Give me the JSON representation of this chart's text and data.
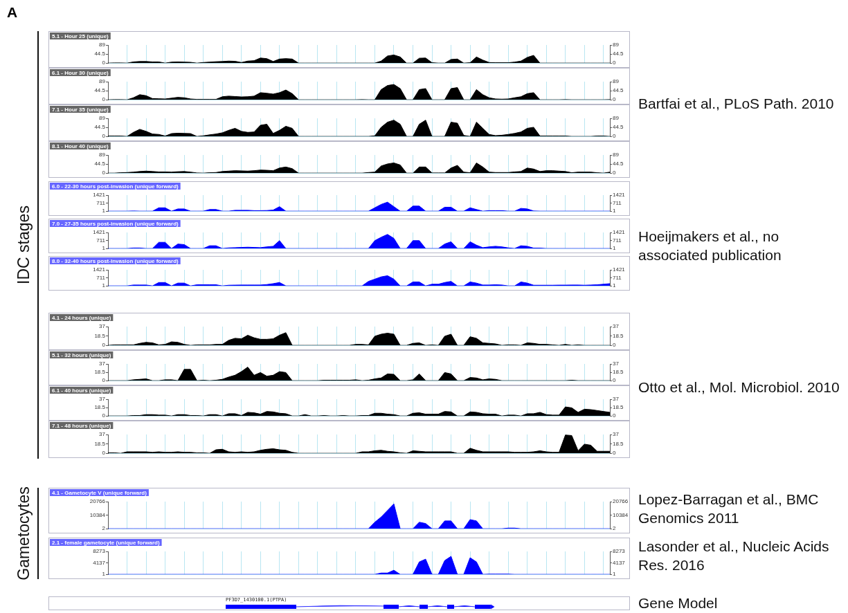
{
  "chart_data": [
    {
      "type": "area",
      "title": "5.1 - Hour 25 (unique)",
      "annotations": [
        "A",
        "IDC stages",
        "Bartfai et al., PLoS Path. 2010"
      ],
      "color": "#000000",
      "grid": "x",
      "ylim": [
        0,
        89
      ],
      "yticks": [
        0,
        44.5,
        89
      ],
      "y2lim": [
        0,
        89
      ],
      "y2ticks": [
        0,
        44.5,
        89
      ],
      "categories": [
        null,
        null,
        null,
        null,
        null,
        null,
        null,
        null,
        null,
        null,
        null,
        null,
        null,
        null,
        null,
        null,
        null,
        null,
        null,
        null,
        null,
        null,
        null,
        null,
        null,
        null,
        null,
        null,
        null,
        null,
        null,
        null,
        null,
        null,
        null,
        null,
        null,
        null,
        null,
        null,
        null,
        null,
        null,
        null,
        null,
        null,
        null,
        null,
        null,
        null,
        null,
        null,
        null,
        null,
        null,
        null,
        null,
        null,
        null,
        null,
        null,
        null,
        null,
        null,
        null,
        null,
        null,
        null,
        null,
        null,
        null,
        null,
        null,
        null,
        null,
        null,
        null,
        null,
        null,
        null
      ],
      "values": [
        0,
        1,
        1,
        0,
        6,
        8,
        8,
        6,
        6,
        0,
        5,
        6,
        5,
        4,
        0,
        3,
        5,
        7,
        8,
        10,
        9,
        3,
        10,
        12,
        25,
        22,
        8,
        20,
        22,
        20,
        0,
        0,
        0,
        0,
        0,
        0,
        0,
        0,
        0,
        0,
        0,
        0,
        0,
        10,
        35,
        40,
        30,
        0,
        0,
        24,
        25,
        2,
        0,
        0,
        18,
        20,
        0,
        2,
        30,
        15,
        3,
        2,
        2,
        2,
        5,
        10,
        28,
        38,
        0,
        0,
        0,
        0,
        0,
        0,
        0,
        0,
        0,
        0,
        0,
        0
      ]
    },
    {
      "type": "area",
      "title": "6.1 - Hour 30 (unique)",
      "color": "#000000",
      "grid": "x",
      "ylim": [
        0,
        89
      ],
      "yticks": [
        0,
        44.5,
        89
      ],
      "y2lim": [
        0,
        89
      ],
      "y2ticks": [
        0,
        44.5,
        89
      ],
      "categories": [
        null,
        null,
        null,
        null,
        null,
        null,
        null,
        null,
        null,
        null,
        null,
        null,
        null,
        null,
        null,
        null,
        null,
        null,
        null,
        null,
        null,
        null,
        null,
        null,
        null,
        null,
        null,
        null,
        null,
        null,
        null,
        null,
        null,
        null,
        null,
        null,
        null,
        null,
        null,
        null,
        null,
        null,
        null,
        null,
        null,
        null,
        null,
        null,
        null,
        null,
        null,
        null,
        null,
        null,
        null,
        null,
        null,
        null,
        null,
        null,
        null,
        null,
        null,
        null,
        null,
        null,
        null,
        null,
        null,
        null,
        null,
        null,
        null,
        null,
        null,
        null,
        null,
        null,
        null,
        null
      ],
      "values": [
        0,
        1,
        1,
        0,
        10,
        25,
        20,
        6,
        5,
        4,
        8,
        12,
        10,
        4,
        2,
        2,
        2,
        2,
        15,
        18,
        16,
        14,
        15,
        18,
        35,
        32,
        28,
        35,
        48,
        30,
        0,
        0,
        0,
        0,
        0,
        0,
        0,
        0,
        0,
        0,
        1,
        0,
        0,
        50,
        70,
        75,
        55,
        0,
        0,
        50,
        55,
        0,
        0,
        0,
        55,
        60,
        0,
        0,
        50,
        25,
        10,
        4,
        3,
        4,
        10,
        15,
        30,
        35,
        0,
        0,
        0,
        0,
        1,
        0,
        0,
        0,
        0,
        0,
        0,
        1
      ]
    },
    {
      "type": "area",
      "title": "7.1 - Hour 35 (unique)",
      "color": "#000000",
      "grid": "x",
      "ylim": [
        0,
        89
      ],
      "yticks": [
        0,
        44.5,
        89
      ],
      "y2lim": [
        0,
        89
      ],
      "y2ticks": [
        0,
        44.5,
        89
      ],
      "categories": [
        null,
        null,
        null,
        null,
        null,
        null,
        null,
        null,
        null,
        null,
        null,
        null,
        null,
        null,
        null,
        null,
        null,
        null,
        null,
        null,
        null,
        null,
        null,
        null,
        null,
        null,
        null,
        null,
        null,
        null,
        null,
        null,
        null,
        null,
        null,
        null,
        null,
        null,
        null,
        null,
        null,
        null,
        null,
        null,
        null,
        null,
        null,
        null,
        null,
        null,
        null,
        null,
        null,
        null,
        null,
        null,
        null,
        null,
        null,
        null,
        null,
        null,
        null,
        null,
        null,
        null,
        null,
        null,
        null,
        null,
        null,
        null,
        null,
        null,
        null,
        null,
        null,
        null,
        null,
        null
      ],
      "values": [
        2,
        2,
        2,
        0,
        20,
        35,
        25,
        12,
        10,
        2,
        14,
        16,
        15,
        14,
        0,
        3,
        8,
        12,
        18,
        30,
        40,
        25,
        20,
        22,
        55,
        60,
        15,
        30,
        50,
        40,
        0,
        0,
        0,
        0,
        0,
        0,
        0,
        0,
        0,
        0,
        0,
        0,
        3,
        45,
        70,
        80,
        60,
        0,
        0,
        60,
        80,
        0,
        0,
        0,
        70,
        65,
        5,
        0,
        70,
        40,
        10,
        4,
        6,
        10,
        15,
        22,
        40,
        45,
        2,
        2,
        2,
        2,
        2,
        0,
        0,
        0,
        0,
        2,
        2,
        0
      ]
    },
    {
      "type": "area",
      "title": "8.1 - Hour 40 (unique)",
      "color": "#000000",
      "grid": "x",
      "ylim": [
        0,
        89
      ],
      "yticks": [
        0,
        44.5,
        89
      ],
      "y2lim": [
        0,
        89
      ],
      "y2ticks": [
        0,
        44.5,
        89
      ],
      "categories": [
        null,
        null,
        null,
        null,
        null,
        null,
        null,
        null,
        null,
        null,
        null,
        null,
        null,
        null,
        null,
        null,
        null,
        null,
        null,
        null,
        null,
        null,
        null,
        null,
        null,
        null,
        null,
        null,
        null,
        null,
        null,
        null,
        null,
        null,
        null,
        null,
        null,
        null,
        null,
        null,
        null,
        null,
        null,
        null,
        null,
        null,
        null,
        null,
        null,
        null,
        null,
        null,
        null,
        null,
        null,
        null,
        null,
        null,
        null,
        null,
        null,
        null,
        null,
        null,
        null,
        null,
        null,
        null,
        null,
        null,
        null,
        null,
        null,
        null,
        null,
        null,
        null,
        null,
        null,
        null
      ],
      "values": [
        0,
        0,
        2,
        3,
        5,
        8,
        10,
        8,
        6,
        6,
        5,
        7,
        8,
        5,
        1,
        0,
        2,
        3,
        8,
        10,
        12,
        11,
        10,
        12,
        15,
        14,
        12,
        25,
        30,
        22,
        0,
        0,
        0,
        0,
        0,
        0,
        0,
        0,
        0,
        0,
        0,
        3,
        5,
        35,
        45,
        50,
        40,
        0,
        0,
        30,
        30,
        1,
        1,
        1,
        25,
        38,
        5,
        2,
        50,
        30,
        5,
        3,
        3,
        3,
        6,
        8,
        25,
        20,
        8,
        12,
        12,
        10,
        8,
        2,
        5,
        5,
        5,
        2,
        0,
        5
      ]
    },
    {
      "type": "area",
      "title": "6.0 - 22-30 hours post-invasion (unique forward)",
      "annotations": [
        "Hoeijmakers et al., no associated publication"
      ],
      "color": "#0000ff",
      "grid": "x",
      "ylim": [
        1,
        1421
      ],
      "yticks": [
        1,
        711,
        1421
      ],
      "y2lim": [
        1,
        1421
      ],
      "y2ticks": [
        1,
        711,
        1421
      ],
      "categories": [
        null,
        null,
        null,
        null,
        null,
        null,
        null,
        null,
        null,
        null,
        null,
        null,
        null,
        null,
        null,
        null,
        null,
        null,
        null,
        null,
        null,
        null,
        null,
        null,
        null,
        null,
        null,
        null,
        null,
        null,
        null,
        null,
        null,
        null,
        null,
        null,
        null,
        null,
        null,
        null,
        null,
        null,
        null,
        null,
        null,
        null,
        null,
        null,
        null,
        null,
        null,
        null,
        null,
        null,
        null,
        null,
        null,
        null,
        null,
        null,
        null,
        null,
        null,
        null,
        null,
        null,
        null,
        null,
        null,
        null,
        null,
        null,
        null,
        null,
        null,
        null,
        null,
        null,
        null,
        null
      ],
      "values": [
        1,
        1,
        1,
        1,
        20,
        1,
        1,
        1,
        300,
        300,
        1,
        200,
        200,
        1,
        1,
        1,
        150,
        150,
        1,
        1,
        80,
        80,
        80,
        50,
        50,
        60,
        100,
        400,
        1,
        1,
        1,
        1,
        1,
        1,
        1,
        1,
        1,
        1,
        1,
        1,
        1,
        1,
        300,
        600,
        800,
        400,
        1,
        1,
        450,
        450,
        1,
        1,
        1,
        350,
        350,
        1,
        1,
        300,
        150,
        1,
        50,
        50,
        50,
        1,
        1,
        250,
        200,
        20,
        1,
        1,
        1,
        1,
        1,
        1,
        1,
        1,
        1,
        1,
        1,
        1
      ]
    },
    {
      "type": "area",
      "title": "7.0 - 27-35 hours post-invasion (unique forward)",
      "color": "#0000ff",
      "grid": "x",
      "ylim": [
        1,
        1421
      ],
      "yticks": [
        1,
        711,
        1421
      ],
      "y2lim": [
        1,
        1421
      ],
      "y2ticks": [
        1,
        711,
        1421
      ],
      "categories": [
        null,
        null,
        null,
        null,
        null,
        null,
        null,
        null,
        null,
        null,
        null,
        null,
        null,
        null,
        null,
        null,
        null,
        null,
        null,
        null,
        null,
        null,
        null,
        null,
        null,
        null,
        null,
        null,
        null,
        null,
        null,
        null,
        null,
        null,
        null,
        null,
        null,
        null,
        null,
        null,
        null,
        null,
        null,
        null,
        null,
        null,
        null,
        null,
        null,
        null,
        null,
        null,
        null,
        null,
        null,
        null,
        null,
        null,
        null,
        null,
        null,
        null,
        null,
        null,
        null,
        null,
        null,
        null,
        null,
        null,
        null,
        null,
        null,
        null,
        null,
        null,
        null,
        null,
        null,
        null
      ],
      "values": [
        1,
        1,
        1,
        1,
        50,
        50,
        1,
        1,
        550,
        550,
        1,
        400,
        350,
        1,
        1,
        1,
        250,
        250,
        1,
        60,
        80,
        100,
        120,
        100,
        80,
        150,
        200,
        700,
        1,
        1,
        1,
        1,
        1,
        1,
        1,
        1,
        1,
        1,
        1,
        1,
        1,
        1,
        700,
        1000,
        1250,
        900,
        1,
        1,
        700,
        700,
        1,
        1,
        1,
        400,
        600,
        1,
        1,
        600,
        300,
        80,
        150,
        200,
        150,
        60,
        1,
        250,
        200,
        40,
        40,
        1,
        1,
        1,
        1,
        1,
        1,
        1,
        1,
        1,
        1,
        1
      ]
    },
    {
      "type": "area",
      "title": "8.0 - 32-40 hours post-invasion (unique forward)",
      "color": "#0000ff",
      "grid": "x",
      "ylim": [
        1,
        1421
      ],
      "yticks": [
        1,
        711,
        1421
      ],
      "y2lim": [
        1,
        1421
      ],
      "y2ticks": [
        1,
        711,
        1421
      ],
      "categories": [
        null,
        null,
        null,
        null,
        null,
        null,
        null,
        null,
        null,
        null,
        null,
        null,
        null,
        null,
        null,
        null,
        null,
        null,
        null,
        null,
        null,
        null,
        null,
        null,
        null,
        null,
        null,
        null,
        null,
        null,
        null,
        null,
        null,
        null,
        null,
        null,
        null,
        null,
        null,
        null,
        null,
        null,
        null,
        null,
        null,
        null,
        null,
        null,
        null,
        null,
        null,
        null,
        null,
        null,
        null,
        null,
        null,
        null,
        null,
        null,
        null,
        null,
        null,
        null,
        null,
        null,
        null,
        null,
        null,
        null,
        null,
        null,
        null,
        null,
        null,
        null,
        null,
        null,
        null,
        null
      ],
      "values": [
        1,
        1,
        1,
        1,
        80,
        80,
        80,
        1,
        300,
        300,
        1,
        250,
        250,
        1,
        100,
        100,
        100,
        100,
        1,
        60,
        70,
        80,
        80,
        80,
        80,
        120,
        200,
        300,
        1,
        1,
        1,
        1,
        1,
        1,
        1,
        1,
        1,
        1,
        1,
        1,
        1,
        400,
        600,
        800,
        900,
        600,
        1,
        1,
        350,
        350,
        1,
        150,
        150,
        300,
        400,
        1,
        1,
        350,
        250,
        80,
        80,
        100,
        80,
        1,
        1,
        350,
        250,
        60,
        60,
        60,
        60,
        70,
        70,
        80,
        80,
        60,
        80,
        100,
        150,
        200
      ]
    },
    {
      "type": "area",
      "title": "4.1 - 24 hours (unique)",
      "annotations": [
        "Otto et al., Mol. Microbiol. 2010"
      ],
      "color": "#000000",
      "grid": "x",
      "ylim": [
        0,
        37
      ],
      "yticks": [
        0,
        18.5,
        37
      ],
      "y2lim": [
        0,
        37
      ],
      "y2ticks": [
        0,
        18.5,
        37
      ],
      "categories": [
        null,
        null,
        null,
        null,
        null,
        null,
        null,
        null,
        null,
        null,
        null,
        null,
        null,
        null,
        null,
        null,
        null,
        null,
        null,
        null,
        null,
        null,
        null,
        null,
        null,
        null,
        null,
        null,
        null,
        null,
        null,
        null,
        null,
        null,
        null,
        null,
        null,
        null,
        null,
        null,
        null,
        null,
        null,
        null,
        null,
        null,
        null,
        null,
        null,
        null,
        null,
        null,
        null,
        null,
        null,
        null,
        null,
        null,
        null,
        null,
        null,
        null,
        null,
        null,
        null,
        null,
        null,
        null,
        null,
        null,
        null,
        null,
        null,
        null,
        null,
        null,
        null,
        null,
        null,
        null
      ],
      "values": [
        0,
        1,
        1,
        1,
        1,
        4,
        6,
        5,
        1,
        2,
        7,
        6,
        2,
        0,
        1,
        1,
        1,
        2,
        2,
        10,
        14,
        13,
        20,
        15,
        12,
        12,
        13,
        20,
        25,
        0,
        0,
        0,
        0,
        0,
        0,
        0,
        0,
        0,
        0,
        2,
        2,
        1,
        18,
        22,
        24,
        22,
        0,
        0,
        4,
        5,
        0,
        1,
        0,
        18,
        22,
        0,
        0,
        17,
        14,
        5,
        4,
        3,
        0,
        1,
        1,
        0,
        5,
        4,
        2,
        2,
        1,
        0,
        2,
        0,
        1,
        0,
        0,
        0,
        0,
        0
      ]
    },
    {
      "type": "area",
      "title": "5.1 - 32 hours (unique)",
      "color": "#000000",
      "grid": "x",
      "ylim": [
        0,
        37
      ],
      "yticks": [
        0,
        18.5,
        37
      ],
      "y2lim": [
        0,
        37
      ],
      "y2ticks": [
        0,
        18.5,
        37
      ],
      "categories": [
        null,
        null,
        null,
        null,
        null,
        null,
        null,
        null,
        null,
        null,
        null,
        null,
        null,
        null,
        null,
        null,
        null,
        null,
        null,
        null,
        null,
        null,
        null,
        null,
        null,
        null,
        null,
        null,
        null,
        null,
        null,
        null,
        null,
        null,
        null,
        null,
        null,
        null,
        null,
        null,
        null,
        null,
        null,
        null,
        null,
        null,
        null,
        null,
        null,
        null,
        null,
        null,
        null,
        null,
        null,
        null,
        null,
        null,
        null,
        null,
        null,
        null,
        null,
        null,
        null,
        null,
        null,
        null,
        null,
        null,
        null,
        null,
        null,
        null,
        null,
        null,
        null,
        null,
        null,
        null
      ],
      "values": [
        0,
        0,
        0,
        0,
        2,
        3,
        4,
        0,
        0,
        2,
        2,
        0,
        25,
        25,
        0,
        1,
        0,
        1,
        3,
        8,
        12,
        20,
        30,
        12,
        18,
        10,
        12,
        20,
        18,
        0,
        0,
        0,
        0,
        0,
        1,
        1,
        1,
        1,
        1,
        2,
        0,
        1,
        4,
        6,
        15,
        14,
        0,
        0,
        2,
        15,
        0,
        0,
        0,
        18,
        15,
        0,
        0,
        7,
        6,
        2,
        4,
        3,
        0,
        0,
        0,
        0,
        0,
        0,
        0,
        0,
        0,
        0,
        0,
        1,
        0,
        0,
        0,
        0,
        0,
        0
      ]
    },
    {
      "type": "area",
      "title": "6.1 - 40 hours (unique)",
      "color": "#000000",
      "grid": "x",
      "ylim": [
        0,
        37
      ],
      "yticks": [
        0,
        18.5,
        37
      ],
      "y2lim": [
        0,
        37
      ],
      "y2ticks": [
        0,
        18.5,
        37
      ],
      "categories": [
        null,
        null,
        null,
        null,
        null,
        null,
        null,
        null,
        null,
        null,
        null,
        null,
        null,
        null,
        null,
        null,
        null,
        null,
        null,
        null,
        null,
        null,
        null,
        null,
        null,
        null,
        null,
        null,
        null,
        null,
        null,
        null,
        null,
        null,
        null,
        null,
        null,
        null,
        null,
        null,
        null,
        null,
        null,
        null,
        null,
        null,
        null,
        null,
        null,
        null,
        null,
        null,
        null,
        null,
        null,
        null,
        null,
        null,
        null,
        null,
        null,
        null,
        null,
        null,
        null,
        null,
        null,
        null,
        null,
        null,
        null,
        null,
        null,
        null,
        null,
        null,
        null,
        null,
        null,
        null
      ],
      "values": [
        0,
        0,
        0,
        0,
        1,
        1,
        3,
        3,
        2,
        2,
        0,
        3,
        3,
        1,
        1,
        0,
        3,
        3,
        0,
        5,
        5,
        1,
        8,
        7,
        4,
        10,
        9,
        6,
        5,
        0,
        0,
        3,
        0,
        0,
        1,
        0,
        0,
        1,
        0,
        0,
        1,
        1,
        6,
        6,
        4,
        3,
        0,
        0,
        6,
        7,
        4,
        4,
        4,
        10,
        9,
        0,
        0,
        9,
        8,
        5,
        4,
        4,
        0,
        2,
        2,
        0,
        5,
        5,
        8,
        3,
        2,
        2,
        20,
        18,
        8,
        15,
        14,
        12,
        10,
        8
      ]
    },
    {
      "type": "area",
      "title": "7.1 - 48 hours (unique)",
      "color": "#000000",
      "grid": "x",
      "ylim": [
        0,
        37
      ],
      "yticks": [
        0,
        18.5,
        37
      ],
      "y2lim": [
        0,
        37
      ],
      "y2ticks": [
        0,
        18.5,
        37
      ],
      "categories": [
        null,
        null,
        null,
        null,
        null,
        null,
        null,
        null,
        null,
        null,
        null,
        null,
        null,
        null,
        null,
        null,
        null,
        null,
        null,
        null,
        null,
        null,
        null,
        null,
        null,
        null,
        null,
        null,
        null,
        null,
        null,
        null,
        null,
        null,
        null,
        null,
        null,
        null,
        null,
        null,
        null,
        null,
        null,
        null,
        null,
        null,
        null,
        null,
        null,
        null,
        null,
        null,
        null,
        null,
        null,
        null,
        null,
        null,
        null,
        null,
        null,
        null,
        null,
        null,
        null,
        null,
        null,
        null,
        null,
        null,
        null,
        null,
        null,
        null,
        null,
        null,
        null,
        null,
        null,
        null
      ],
      "values": [
        1,
        1,
        0,
        3,
        3,
        3,
        3,
        2,
        3,
        2,
        2,
        3,
        2,
        2,
        1,
        1,
        0,
        7,
        8,
        3,
        2,
        3,
        2,
        3,
        6,
        8,
        9,
        7,
        6,
        2,
        0,
        0,
        0,
        0,
        0,
        0,
        0,
        0,
        0,
        0,
        3,
        3,
        5,
        6,
        4,
        3,
        1,
        0,
        5,
        4,
        3,
        3,
        3,
        3,
        3,
        0,
        0,
        10,
        6,
        3,
        3,
        3,
        3,
        3,
        2,
        2,
        2,
        3,
        5,
        3,
        2,
        2,
        36,
        35,
        5,
        18,
        16,
        4,
        4,
        4
      ]
    },
    {
      "type": "area",
      "title": "4.1 - Gametocyte V (unique forward)",
      "annotations": [
        "Gametocytes",
        "Lopez-Barragan et al., BMC Genomics 2011"
      ],
      "color": "#0000ff",
      "grid": "x",
      "ylim": [
        2,
        20766
      ],
      "yticks": [
        2,
        10384,
        20766
      ],
      "y2lim": [
        2,
        20766
      ],
      "y2ticks": [
        2,
        10384,
        20766
      ],
      "categories": [
        null,
        null,
        null,
        null,
        null,
        null,
        null,
        null,
        null,
        null,
        null,
        null,
        null,
        null,
        null,
        null,
        null,
        null,
        null,
        null,
        null,
        null,
        null,
        null,
        null,
        null,
        null,
        null,
        null,
        null,
        null,
        null,
        null,
        null,
        null,
        null,
        null,
        null,
        null,
        null,
        null,
        null,
        null,
        null,
        null,
        null,
        null,
        null,
        null,
        null,
        null,
        null,
        null,
        null,
        null,
        null,
        null,
        null,
        null,
        null,
        null,
        null,
        null,
        null,
        null,
        null,
        null,
        null,
        null,
        null,
        null,
        null,
        null,
        null,
        null,
        null,
        null,
        null,
        null,
        null
      ],
      "values": [
        2,
        2,
        2,
        2,
        2,
        2,
        2,
        2,
        2,
        2,
        2,
        2,
        2,
        2,
        2,
        2,
        2,
        2,
        2,
        2,
        2,
        2,
        2,
        2,
        2,
        2,
        2,
        2,
        2,
        2,
        2,
        2,
        2,
        2,
        2,
        2,
        2,
        2,
        2,
        2,
        2,
        2,
        5000,
        9000,
        14000,
        19000,
        2,
        2,
        2,
        5000,
        4000,
        2,
        2,
        6000,
        6000,
        2,
        2,
        7000,
        6000,
        2,
        2,
        2,
        2,
        500,
        500,
        2,
        2,
        2,
        2,
        2,
        2,
        2,
        2,
        2,
        2,
        2,
        2,
        2,
        2,
        2
      ]
    },
    {
      "type": "area",
      "title": "2.1 - female gametocyte (unique forward)",
      "annotations": [
        "Lasonder et al., Nucleic Acids Res. 2016"
      ],
      "color": "#0000ff",
      "grid": "x",
      "ylim": [
        1,
        8273
      ],
      "yticks": [
        1,
        4137,
        8273
      ],
      "y2lim": [
        1,
        8273
      ],
      "y2ticks": [
        1,
        4137,
        8273
      ],
      "categories": [
        null,
        null,
        null,
        null,
        null,
        null,
        null,
        null,
        null,
        null,
        null,
        null,
        null,
        null,
        null,
        null,
        null,
        null,
        null,
        null,
        null,
        null,
        null,
        null,
        null,
        null,
        null,
        null,
        null,
        null,
        null,
        null,
        null,
        null,
        null,
        null,
        null,
        null,
        null,
        null,
        null,
        null,
        null,
        null,
        null,
        null,
        null,
        null,
        null,
        null,
        null,
        null,
        null,
        null,
        null,
        null,
        null,
        null,
        null,
        null,
        null,
        null,
        null,
        null,
        null,
        null,
        null,
        null,
        null,
        null,
        null,
        null,
        null,
        null,
        null,
        null,
        null,
        null,
        null,
        null
      ],
      "values": [
        1,
        1,
        1,
        1,
        1,
        1,
        1,
        1,
        1,
        1,
        1,
        1,
        1,
        1,
        1,
        1,
        1,
        1,
        1,
        1,
        1,
        1,
        1,
        1,
        1,
        1,
        1,
        1,
        1,
        1,
        1,
        1,
        1,
        1,
        1,
        1,
        1,
        1,
        1,
        1,
        1,
        1,
        1,
        500,
        500,
        1500,
        1,
        1,
        1,
        4500,
        5500,
        1,
        1,
        5000,
        6500,
        1,
        1,
        6000,
        4500,
        1,
        100,
        100,
        100,
        100,
        1,
        1,
        1,
        1,
        1,
        1,
        1,
        1,
        1,
        1,
        1,
        1,
        1,
        1,
        1,
        1
      ]
    },
    {
      "type": "other",
      "title": "PF3D7_1430100.1(PTPA)",
      "annotations": [
        "Gene Model"
      ]
    }
  ]
}
